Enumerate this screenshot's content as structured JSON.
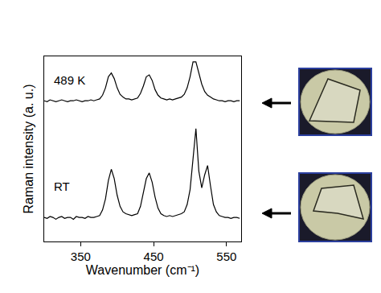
{
  "chart_data": {
    "type": "line",
    "x_label": "Wavenumber (cm⁻¹)",
    "y_label": "Raman intensity (a. u.)",
    "x": [
      300,
      304,
      308,
      312,
      316,
      320,
      324,
      328,
      332,
      336,
      340,
      344,
      348,
      352,
      356,
      360,
      364,
      368,
      372,
      376,
      380,
      384,
      388,
      392,
      396,
      400,
      404,
      408,
      412,
      416,
      420,
      424,
      428,
      432,
      436,
      440,
      444,
      448,
      452,
      456,
      460,
      464,
      468,
      472,
      476,
      480,
      484,
      488,
      492,
      496,
      500,
      504,
      508,
      512,
      516,
      520,
      524,
      528,
      532,
      536,
      540,
      544,
      548,
      552,
      556,
      560,
      564,
      568
    ],
    "series": [
      {
        "name": "489 K",
        "color": "#000000",
        "line_style": "solid",
        "values": [
          7.6,
          7.55,
          7.65,
          7.6,
          7.55,
          7.6,
          7.65,
          7.6,
          7.55,
          7.6,
          7.6,
          7.65,
          7.6,
          7.55,
          7.6,
          7.6,
          7.65,
          7.6,
          7.65,
          7.7,
          7.9,
          8.3,
          8.9,
          9.1,
          8.8,
          8.3,
          7.95,
          7.8,
          7.7,
          7.7,
          7.65,
          7.7,
          7.75,
          8.0,
          8.4,
          8.9,
          9.0,
          8.7,
          8.2,
          7.9,
          7.75,
          7.7,
          7.65,
          7.7,
          7.65,
          7.7,
          7.75,
          7.8,
          7.95,
          8.3,
          8.9,
          9.7,
          9.7,
          9.1,
          8.5,
          8.1,
          7.9,
          7.8,
          7.7,
          7.65,
          7.6,
          7.6,
          7.55,
          7.6,
          7.6,
          7.55,
          7.6,
          7.6
        ]
      },
      {
        "name": "RT",
        "color": "#000000",
        "line_style": "solid",
        "values": [
          1.3,
          1.25,
          1.35,
          1.3,
          1.2,
          1.3,
          1.35,
          1.25,
          1.3,
          1.3,
          1.2,
          1.35,
          1.3,
          1.3,
          1.25,
          1.35,
          1.3,
          1.3,
          1.35,
          1.4,
          1.7,
          2.3,
          3.3,
          3.9,
          3.4,
          2.5,
          1.9,
          1.6,
          1.5,
          1.45,
          1.4,
          1.45,
          1.5,
          1.9,
          2.6,
          3.4,
          3.7,
          3.2,
          2.4,
          1.8,
          1.5,
          1.4,
          1.35,
          1.4,
          1.35,
          1.4,
          1.45,
          1.5,
          1.6,
          2.0,
          2.8,
          4.5,
          6.1,
          3.8,
          2.9,
          3.6,
          4.1,
          3.0,
          2.0,
          1.6,
          1.4,
          1.35,
          1.3,
          1.3,
          1.25,
          1.3,
          1.3,
          1.25
        ]
      }
    ],
    "annotations": [
      {
        "text": "489 K",
        "x": 311,
        "y": 8.7
      },
      {
        "text": "RT",
        "x": 311,
        "y": 3.0
      }
    ],
    "xlim": [
      300,
      570
    ],
    "xticks": [
      350,
      450,
      550
    ],
    "ylim": [
      0,
      10
    ],
    "tick_labels": "x",
    "grid": false
  }
}
